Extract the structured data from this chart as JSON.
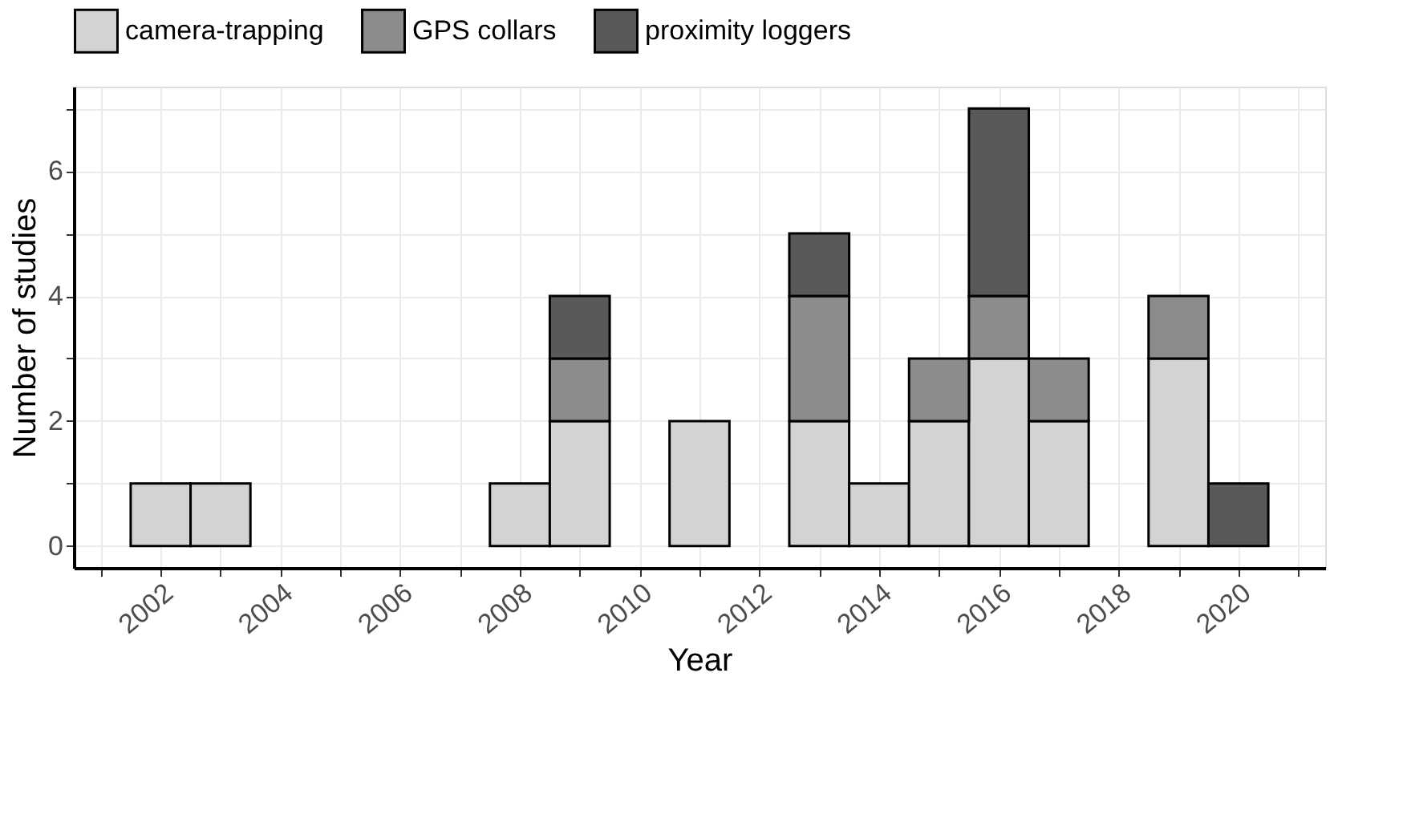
{
  "chart_data": {
    "type": "bar",
    "stacked": true,
    "xlabel": "Year",
    "ylabel": "Number of studies",
    "x": [
      2002,
      2003,
      2004,
      2005,
      2006,
      2007,
      2008,
      2009,
      2010,
      2011,
      2012,
      2013,
      2014,
      2015,
      2016,
      2017,
      2018,
      2019,
      2020
    ],
    "series": [
      {
        "name": "camera-trapping",
        "color": "#d3d3d3",
        "values": [
          1,
          1,
          null,
          null,
          null,
          null,
          1,
          2,
          null,
          2,
          null,
          2,
          1,
          2,
          3,
          2,
          null,
          3,
          null
        ]
      },
      {
        "name": "GPS collars",
        "color": "#8c8c8c",
        "values": [
          null,
          null,
          null,
          null,
          null,
          null,
          null,
          1,
          null,
          null,
          null,
          2,
          null,
          1,
          1,
          1,
          null,
          1,
          null
        ]
      },
      {
        "name": "proximity loggers",
        "color": "#595959",
        "values": [
          null,
          null,
          null,
          null,
          null,
          null,
          null,
          1,
          null,
          null,
          null,
          1,
          null,
          null,
          3,
          null,
          null,
          null,
          1
        ]
      }
    ],
    "xlim": [
      2000.55,
      2021.45
    ],
    "ylim": [
      -0.35,
      7.35
    ],
    "xticks": [
      {
        "value": 2001,
        "label": null
      },
      2002,
      {
        "value": 2003,
        "label": null
      },
      2004,
      {
        "value": 2005,
        "label": null
      },
      2006,
      {
        "value": 2007,
        "label": null
      },
      2008,
      {
        "value": 2009,
        "label": null
      },
      2010,
      {
        "value": 2011,
        "label": null
      },
      2012,
      {
        "value": 2013,
        "label": null
      },
      2014,
      {
        "value": 2015,
        "label": null
      },
      2016,
      {
        "value": 2017,
        "label": null
      },
      2018,
      {
        "value": 2019,
        "label": null
      },
      2020,
      {
        "value": 2021,
        "label": null
      }
    ],
    "yticks": [
      0,
      {
        "value": 1,
        "label": null
      },
      2,
      {
        "value": 3,
        "label": null
      },
      4,
      {
        "value": 5,
        "label": null
      },
      6,
      {
        "value": 7,
        "label": null
      }
    ],
    "grid": true,
    "legend": "top"
  }
}
